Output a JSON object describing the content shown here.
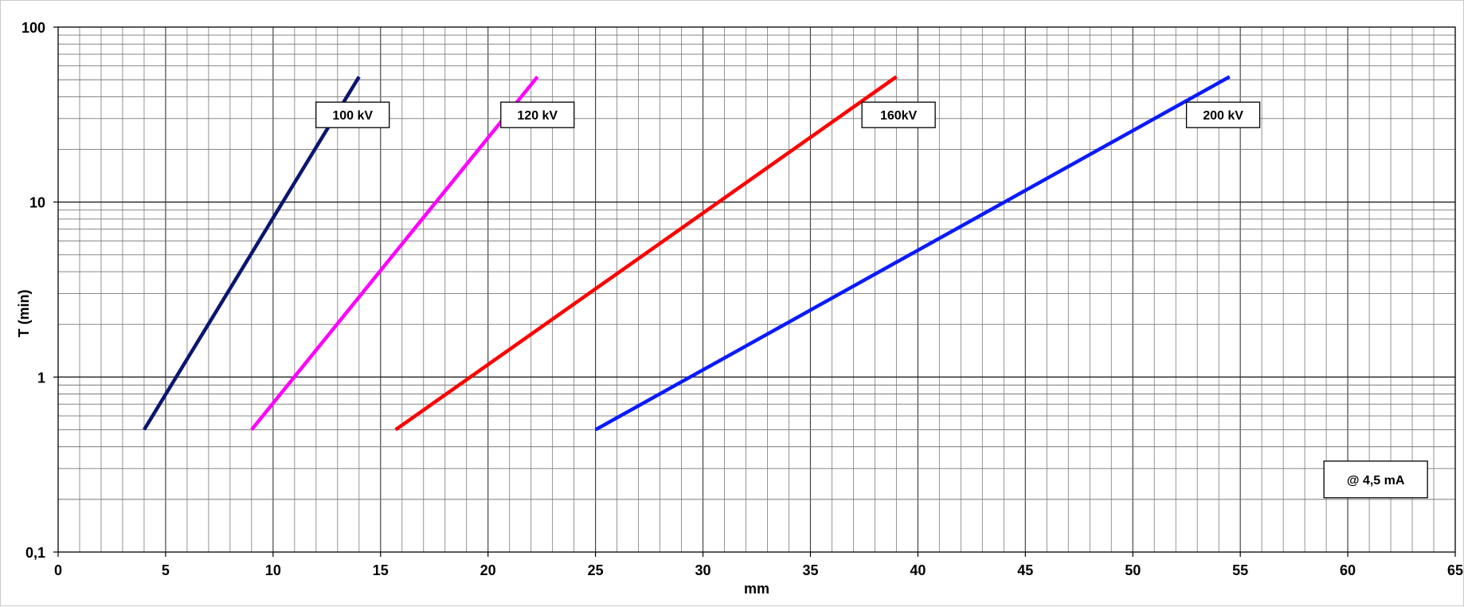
{
  "chart_data": {
    "type": "line",
    "title": "",
    "xlabel": "mm",
    "ylabel": "T (min)",
    "x_scale": "linear",
    "y_scale": "log",
    "xlim": [
      0,
      65
    ],
    "ylim": [
      0.1,
      100
    ],
    "x_ticks": [
      0,
      5,
      10,
      15,
      20,
      25,
      30,
      35,
      40,
      45,
      50,
      55,
      60,
      65
    ],
    "x_tick_labels": [
      "0",
      "5",
      "10",
      "15",
      "20",
      "25",
      "30",
      "35",
      "40",
      "45",
      "50",
      "55",
      "60",
      "65"
    ],
    "y_ticks": [
      0.1,
      1,
      10,
      100
    ],
    "y_tick_labels": [
      "0,1",
      "1",
      "10",
      "100"
    ],
    "grid": true,
    "legend": "none",
    "series": [
      {
        "name": "100 kV",
        "color": "#0a1670",
        "x": [
          4.0,
          14.0
        ],
        "y": [
          0.5,
          52
        ]
      },
      {
        "name": "120 kV",
        "color": "#ff00ff",
        "x": [
          9.0,
          22.3
        ],
        "y": [
          0.5,
          52
        ]
      },
      {
        "name": "160kV",
        "color": "#ff0000",
        "x": [
          15.7,
          39.0
        ],
        "y": [
          0.5,
          52
        ]
      },
      {
        "name": "200 kV",
        "color": "#0a1bff",
        "x": [
          25.0,
          54.5
        ],
        "y": [
          0.5,
          52
        ]
      }
    ],
    "annotations": [
      {
        "text": "@ 4,5 mA"
      }
    ]
  }
}
